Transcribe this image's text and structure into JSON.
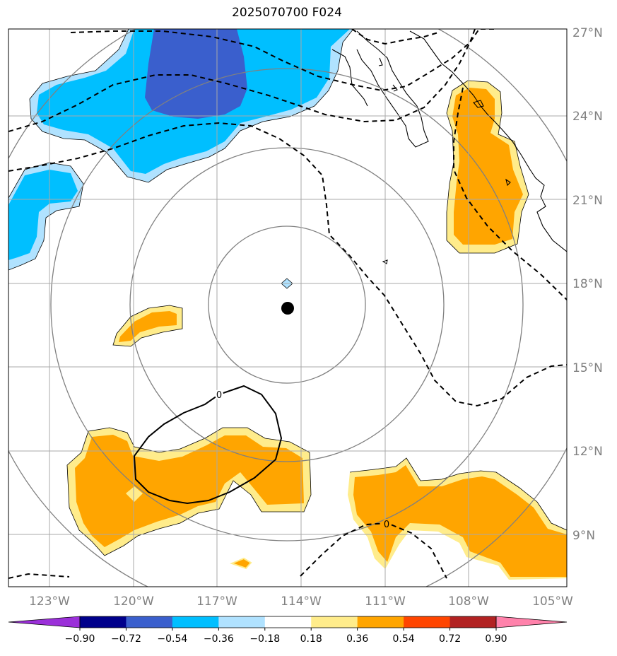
{
  "title": "2025070700 F024",
  "lon_labels": [
    "123°W",
    "120°W",
    "117°W",
    "114°W",
    "111°W",
    "108°W",
    "105°W"
  ],
  "lat_labels": [
    "27°N",
    "24°N",
    "21°N",
    "18°N",
    "15°N",
    "12°N",
    "9°N"
  ],
  "colorbar": {
    "tick_labels": [
      "−0.90",
      "−0.72",
      "−0.54",
      "−0.36",
      "−0.18",
      "0.18",
      "0.36",
      "0.54",
      "0.72",
      "0.90"
    ],
    "colors": [
      "#9b30d9",
      "#00008b",
      "#3a5fcd",
      "#00bfff",
      "#b0e2ff",
      "#ffffff",
      "#ffec8b",
      "#ffa500",
      "#ff4500",
      "#b22222",
      "#ff82ab"
    ]
  },
  "contour_labels": [
    "0",
    "0"
  ],
  "colors": {
    "positive_light": "#ffec8b",
    "positive": "#ffa500",
    "negative_light": "#b0e2ff",
    "negative": "#00bfff",
    "negative_strong": "#3a5fcd",
    "gridline": "#a9a9a9",
    "range_ring": "#808080",
    "coast": "#000000"
  }
}
